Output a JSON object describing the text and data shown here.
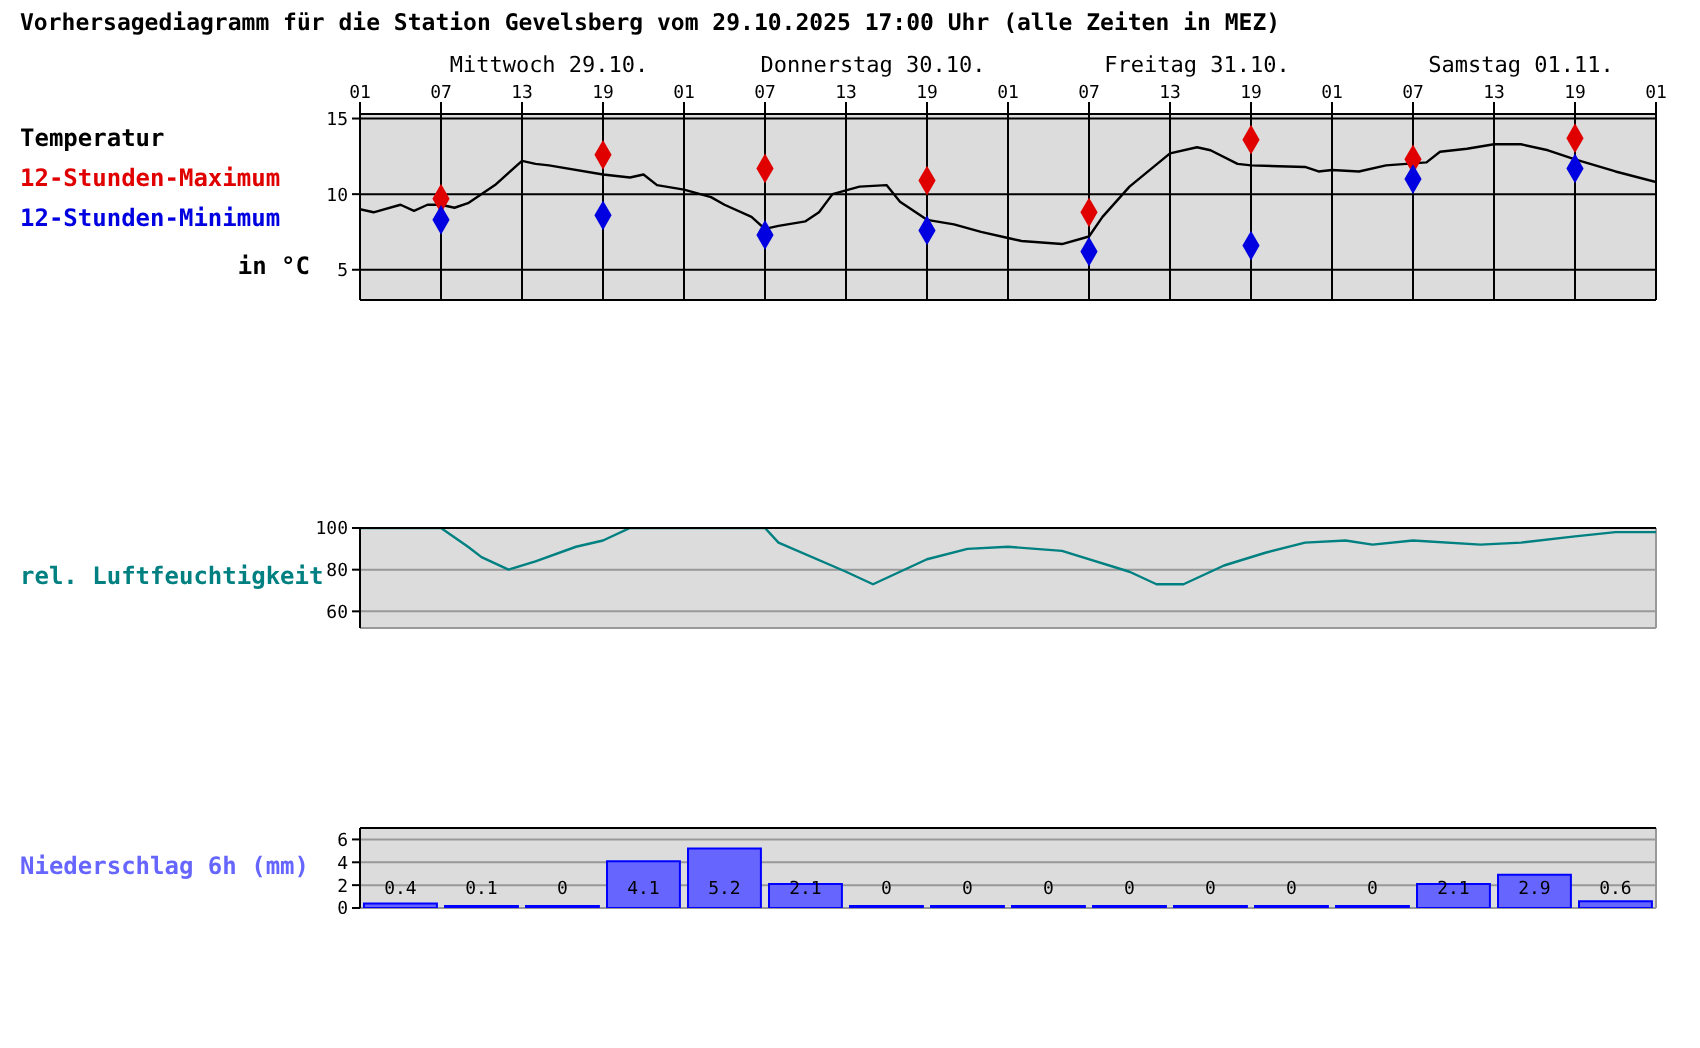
{
  "chart_data": [
    {
      "type": "line",
      "title": "Vorhersagediagramm für die Station Gevelsberg vom 29.10.2025 17:00 Uhr (alle Zeiten in MEZ)",
      "ylabel": "in °C",
      "legend": "left",
      "grid": true,
      "xlim": [
        "2025-10-29T01:00",
        "2025-11-02T01:00"
      ],
      "xticks": [
        {
          "value": "2025-10-29T01:00",
          "label": "01"
        },
        {
          "value": "2025-10-29T07:00",
          "label": "07"
        },
        {
          "value": "2025-10-29T13:00",
          "label": "13"
        },
        {
          "value": "2025-10-29T19:00",
          "label": "19"
        },
        {
          "value": "2025-10-30T01:00",
          "label": "01"
        },
        {
          "value": "2025-10-30T07:00",
          "label": "07"
        },
        {
          "value": "2025-10-30T13:00",
          "label": "13"
        },
        {
          "value": "2025-10-30T19:00",
          "label": "19"
        },
        {
          "value": "2025-10-31T01:00",
          "label": "01"
        },
        {
          "value": "2025-10-31T07:00",
          "label": "07"
        },
        {
          "value": "2025-10-31T13:00",
          "label": "13"
        },
        {
          "value": "2025-10-31T19:00",
          "label": "19"
        },
        {
          "value": "2025-11-01T01:00",
          "label": "01"
        },
        {
          "value": "2025-11-01T07:00",
          "label": "07"
        },
        {
          "value": "2025-11-01T13:00",
          "label": "13"
        },
        {
          "value": "2025-11-01T19:00",
          "label": "19"
        },
        {
          "value": "2025-11-02T01:00",
          "label": "01"
        }
      ],
      "x2lim": [
        "2025-10-29T01:00",
        "2025-11-02T01:00"
      ],
      "x2ticks": [
        {
          "value": "2025-10-29T15:00",
          "label": "Mittwoch 29.10."
        },
        {
          "value": "2025-10-30T15:00",
          "label": "Donnerstag 30.10."
        },
        {
          "value": "2025-10-31T15:00",
          "label": "Freitag 31.10."
        },
        {
          "value": "2025-11-01T15:00",
          "label": "Samstag 01.11."
        }
      ],
      "ylim": [
        3,
        15.3
      ],
      "yticks": [
        5,
        10,
        15
      ],
      "series": [
        {
          "name": "Temperatur",
          "color": "#000000",
          "marker": "none",
          "x": [
            "2025-10-29T01:00",
            "2025-10-29T02:00",
            "2025-10-29T04:00",
            "2025-10-29T05:00",
            "2025-10-29T06:00",
            "2025-10-29T07:00",
            "2025-10-29T08:00",
            "2025-10-29T09:00",
            "2025-10-29T11:00",
            "2025-10-29T13:00",
            "2025-10-29T14:00",
            "2025-10-29T15:00",
            "2025-10-29T19:00",
            "2025-10-29T21:00",
            "2025-10-29T22:00",
            "2025-10-29T23:00",
            "2025-10-30T01:00",
            "2025-10-30T03:00",
            "2025-10-30T04:00",
            "2025-10-30T06:00",
            "2025-10-30T07:00",
            "2025-10-30T08:00",
            "2025-10-30T10:00",
            "2025-10-30T11:00",
            "2025-10-30T12:00",
            "2025-10-30T14:00",
            "2025-10-30T16:00",
            "2025-10-30T17:00",
            "2025-10-30T19:00",
            "2025-10-30T21:00",
            "2025-10-30T23:00",
            "2025-10-31T01:00",
            "2025-10-31T02:00",
            "2025-10-31T05:00",
            "2025-10-31T07:00",
            "2025-10-31T08:00",
            "2025-10-31T10:00",
            "2025-10-31T13:00",
            "2025-10-31T15:00",
            "2025-10-31T16:00",
            "2025-10-31T18:00",
            "2025-10-31T19:00",
            "2025-10-31T23:00",
            "2025-11-01T00:00",
            "2025-11-01T01:00",
            "2025-11-01T03:00",
            "2025-11-01T05:00",
            "2025-11-01T08:00",
            "2025-11-01T09:00",
            "2025-11-01T11:00",
            "2025-11-01T13:00",
            "2025-11-01T15:00",
            "2025-11-01T17:00",
            "2025-11-01T19:00",
            "2025-11-01T22:00",
            "2025-11-02T01:00"
          ],
          "values": [
            9.0,
            8.8,
            9.3,
            8.9,
            9.3,
            9.3,
            9.1,
            9.4,
            10.6,
            12.2,
            12.0,
            11.9,
            11.3,
            11.1,
            11.3,
            10.6,
            10.3,
            9.8,
            9.3,
            8.5,
            7.7,
            7.9,
            8.2,
            8.8,
            10.0,
            10.5,
            10.6,
            9.5,
            8.3,
            8.0,
            7.5,
            7.1,
            6.9,
            6.7,
            7.2,
            8.5,
            10.5,
            12.7,
            13.1,
            12.9,
            12.0,
            11.9,
            11.8,
            11.5,
            11.6,
            11.5,
            11.9,
            12.1,
            12.8,
            13.0,
            13.3,
            13.3,
            12.9,
            12.3,
            11.5,
            10.8
          ]
        },
        {
          "name": "12-Stunden-Maximum",
          "type": "scatter",
          "color": "#e00000",
          "marker": "diamond",
          "x": [
            "2025-10-29T07:00",
            "2025-10-29T19:00",
            "2025-10-30T07:00",
            "2025-10-30T19:00",
            "2025-10-31T07:00",
            "2025-10-31T19:00",
            "2025-11-01T07:00",
            "2025-11-01T19:00"
          ],
          "values": [
            9.7,
            12.6,
            11.7,
            10.9,
            8.8,
            13.6,
            12.3,
            13.7
          ]
        },
        {
          "name": "12-Stunden-Minimum",
          "type": "scatter",
          "color": "#0000e0",
          "marker": "diamond",
          "x": [
            "2025-10-29T07:00",
            "2025-10-29T19:00",
            "2025-10-30T07:00",
            "2025-10-30T19:00",
            "2025-10-31T07:00",
            "2025-10-31T19:00",
            "2025-11-01T07:00",
            "2025-11-01T19:00"
          ],
          "values": [
            8.3,
            8.6,
            7.3,
            7.6,
            6.2,
            6.6,
            11.0,
            11.7
          ]
        }
      ]
    },
    {
      "type": "line",
      "legend": "left",
      "grid": true,
      "tick_labels": "y",
      "xlim": [
        "2025-10-29T01:00",
        "2025-11-02T01:00"
      ],
      "xticks": [
        {
          "value": "2025-10-29T01:00",
          "label": null
        },
        {
          "value": "2025-10-29T07:00",
          "label": null
        },
        {
          "value": "2025-10-29T13:00",
          "label": null
        },
        {
          "value": "2025-10-29T19:00",
          "label": null
        },
        {
          "value": "2025-10-30T01:00",
          "label": null
        },
        {
          "value": "2025-10-30T07:00",
          "label": null
        },
        {
          "value": "2025-10-30T13:00",
          "label": null
        },
        {
          "value": "2025-10-30T19:00",
          "label": null
        },
        {
          "value": "2025-10-31T01:00",
          "label": null
        },
        {
          "value": "2025-10-31T07:00",
          "label": null
        },
        {
          "value": "2025-10-31T13:00",
          "label": null
        },
        {
          "value": "2025-10-31T19:00",
          "label": null
        },
        {
          "value": "2025-11-01T01:00",
          "label": null
        },
        {
          "value": "2025-11-01T07:00",
          "label": null
        },
        {
          "value": "2025-11-01T13:00",
          "label": null
        },
        {
          "value": "2025-11-01T19:00",
          "label": null
        },
        {
          "value": "2025-11-02T01:00",
          "label": null
        }
      ],
      "ylim": [
        52,
        100
      ],
      "yticks": [
        60,
        80,
        100
      ],
      "series": [
        {
          "name": "rel. Luftfeuchtigkeit",
          "color": "#008080",
          "marker": "none",
          "x": [
            "2025-10-29T01:00",
            "2025-10-29T07:00",
            "2025-10-29T09:00",
            "2025-10-29T10:00",
            "2025-10-29T12:00",
            "2025-10-29T14:00",
            "2025-10-29T17:00",
            "2025-10-29T19:00",
            "2025-10-29T21:00",
            "2025-10-30T07:00",
            "2025-10-30T08:00",
            "2025-10-30T13:00",
            "2025-10-30T15:00",
            "2025-10-30T19:00",
            "2025-10-30T22:00",
            "2025-10-31T01:00",
            "2025-10-31T05:00",
            "2025-10-31T10:00",
            "2025-10-31T12:00",
            "2025-10-31T14:00",
            "2025-10-31T17:00",
            "2025-10-31T20:00",
            "2025-10-31T23:00",
            "2025-11-01T02:00",
            "2025-11-01T04:00",
            "2025-11-01T07:00",
            "2025-11-01T12:00",
            "2025-11-01T15:00",
            "2025-11-01T19:00",
            "2025-11-01T22:00",
            "2025-11-02T00:00",
            "2025-11-02T01:00"
          ],
          "values": [
            100,
            100,
            91,
            86,
            80,
            84,
            91,
            94,
            100,
            100,
            93,
            79,
            73,
            85,
            90,
            91,
            89,
            79,
            73,
            73,
            82,
            88,
            93,
            94,
            92,
            94,
            92,
            93,
            96,
            98,
            98,
            98
          ]
        }
      ]
    },
    {
      "type": "bar",
      "legend": "left",
      "grid": true,
      "tick_labels": "y",
      "data_labels": true,
      "xlim": [
        "2025-10-29T01:00",
        "2025-11-02T01:00"
      ],
      "xticks": [
        {
          "value": "2025-10-29T01:00",
          "label": null
        },
        {
          "value": "2025-10-29T07:00",
          "label": null
        },
        {
          "value": "2025-10-29T13:00",
          "label": null
        },
        {
          "value": "2025-10-29T19:00",
          "label": null
        },
        {
          "value": "2025-10-30T01:00",
          "label": null
        },
        {
          "value": "2025-10-30T07:00",
          "label": null
        },
        {
          "value": "2025-10-30T13:00",
          "label": null
        },
        {
          "value": "2025-10-30T19:00",
          "label": null
        },
        {
          "value": "2025-10-31T01:00",
          "label": null
        },
        {
          "value": "2025-10-31T07:00",
          "label": null
        },
        {
          "value": "2025-10-31T13:00",
          "label": null
        },
        {
          "value": "2025-10-31T19:00",
          "label": null
        },
        {
          "value": "2025-11-01T01:00",
          "label": null
        },
        {
          "value": "2025-11-01T07:00",
          "label": null
        },
        {
          "value": "2025-11-01T13:00",
          "label": null
        },
        {
          "value": "2025-11-01T19:00",
          "label": null
        },
        {
          "value": "2025-11-02T01:00",
          "label": null
        }
      ],
      "ylim": [
        0,
        7
      ],
      "yticks": [
        0,
        2,
        4,
        6
      ],
      "series": [
        {
          "name": "Niederschlag 6h (mm)",
          "color": "#6666ff",
          "x": [
            "2025-10-29T04:00",
            "2025-10-29T10:00",
            "2025-10-29T16:00",
            "2025-10-29T22:00",
            "2025-10-30T04:00",
            "2025-10-30T10:00",
            "2025-10-30T16:00",
            "2025-10-30T22:00",
            "2025-10-31T04:00",
            "2025-10-31T10:00",
            "2025-10-31T16:00",
            "2025-10-31T22:00",
            "2025-11-01T04:00",
            "2025-11-01T10:00",
            "2025-11-01T16:00",
            "2025-11-01T22:00"
          ],
          "values": [
            0.4,
            0.1,
            0,
            4.1,
            5.2,
            2.1,
            0,
            0,
            0,
            0,
            0,
            0,
            0,
            2.1,
            2.9,
            0.6
          ]
        }
      ]
    }
  ]
}
